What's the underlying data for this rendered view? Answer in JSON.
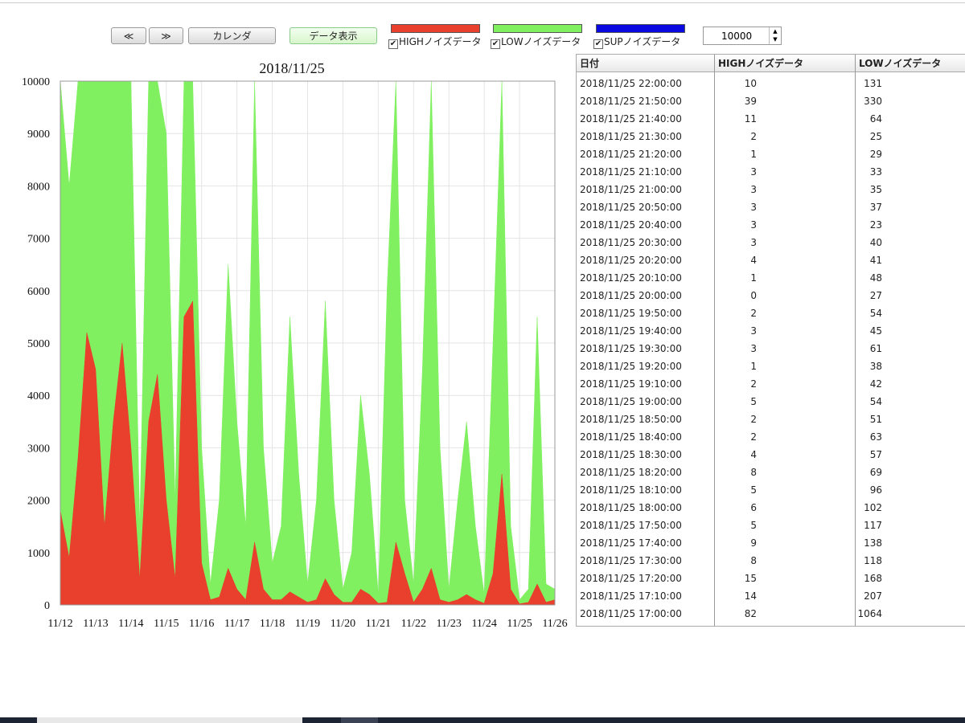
{
  "toolbar": {
    "buttons": [
      "≪",
      "≫",
      "カレンダ",
      "データ表示"
    ],
    "legend": [
      {
        "label": "HIGHノイズデータ",
        "color": "#e8402c"
      },
      {
        "label": "LOWノイズデータ",
        "color": "#80f060"
      },
      {
        "label": "SUPノイズデータ",
        "color": "#0a0ae0"
      }
    ],
    "spinner": 10000
  },
  "chart_data": {
    "type": "area",
    "title": "2018/11/25",
    "x": [
      0,
      0.25,
      0.5,
      0.75,
      1,
      1.25,
      1.5,
      1.75,
      2,
      2.25,
      2.5,
      2.75,
      3,
      3.25,
      3.5,
      3.75,
      4,
      4.25,
      4.5,
      4.75,
      5,
      5.25,
      5.5,
      5.75,
      6,
      6.25,
      6.5,
      6.75,
      7,
      7.25,
      7.5,
      7.75,
      8,
      8.25,
      8.5,
      8.75,
      9,
      9.25,
      9.5,
      9.75,
      10,
      10.25,
      10.5,
      10.75,
      11,
      11.25,
      11.5,
      11.75,
      12,
      12.25,
      12.5,
      12.75,
      13,
      13.25,
      13.5,
      13.75,
      14
    ],
    "series": [
      {
        "color": "#80f060",
        "values": [
          10000,
          8000,
          10000,
          10000,
          10000,
          10000,
          10000,
          10000,
          10000,
          1500,
          10000,
          10000,
          9000,
          2000,
          10000,
          10000,
          3000,
          400,
          2000,
          6500,
          3500,
          1500,
          10000,
          3000,
          800,
          1500,
          5500,
          2500,
          400,
          2000,
          5800,
          2000,
          300,
          1000,
          4000,
          2500,
          200,
          6000,
          10000,
          2000,
          400,
          4500,
          10000,
          3000,
          300,
          2000,
          3500,
          1500,
          200,
          5000,
          10000,
          1500,
          100,
          300,
          5500,
          400,
          300
        ]
      },
      {
        "color": "#e8402c",
        "values": [
          1800,
          900,
          2800,
          5200,
          4500,
          1500,
          3500,
          5000,
          3000,
          500,
          3500,
          4400,
          2000,
          500,
          5500,
          5800,
          800,
          100,
          150,
          700,
          300,
          100,
          1200,
          300,
          100,
          100,
          250,
          150,
          50,
          100,
          500,
          200,
          50,
          50,
          300,
          200,
          30,
          50,
          1200,
          600,
          50,
          300,
          700,
          100,
          50,
          100,
          200,
          100,
          30,
          600,
          2500,
          300,
          20,
          50,
          400,
          50,
          100
        ]
      }
    ],
    "xlim": [
      0,
      14
    ],
    "xticks": [
      {
        "value": 0,
        "label": "11/12"
      },
      {
        "value": 1,
        "label": "11/13"
      },
      {
        "value": 2,
        "label": "11/14"
      },
      {
        "value": 3,
        "label": "11/15"
      },
      {
        "value": 4,
        "label": "11/16"
      },
      {
        "value": 5,
        "label": "11/17"
      },
      {
        "value": 6,
        "label": "11/18"
      },
      {
        "value": 7,
        "label": "11/19"
      },
      {
        "value": 8,
        "label": "11/20"
      },
      {
        "value": 9,
        "label": "11/21"
      },
      {
        "value": 10,
        "label": "11/22"
      },
      {
        "value": 11,
        "label": "11/23"
      },
      {
        "value": 12,
        "label": "11/24"
      },
      {
        "value": 13,
        "label": "11/25"
      },
      {
        "value": 14,
        "label": "11/26"
      }
    ],
    "ylim": [
      0,
      10000
    ],
    "yticks": [
      0,
      1000,
      2000,
      3000,
      4000,
      5000,
      6000,
      7000,
      8000,
      9000,
      10000
    ],
    "grid": true
  },
  "table": {
    "header": [
      "日付",
      "HIGHノイズデータ",
      "LOWノイズデータ"
    ],
    "rows": [
      [
        "2018/11/25 22:00:00",
        10,
        131
      ],
      [
        "2018/11/25 21:50:00",
        39,
        330
      ],
      [
        "2018/11/25 21:40:00",
        11,
        64
      ],
      [
        "2018/11/25 21:30:00",
        2,
        25
      ],
      [
        "2018/11/25 21:20:00",
        1,
        29
      ],
      [
        "2018/11/25 21:10:00",
        3,
        33
      ],
      [
        "2018/11/25 21:00:00",
        3,
        35
      ],
      [
        "2018/11/25 20:50:00",
        3,
        37
      ],
      [
        "2018/11/25 20:40:00",
        3,
        23
      ],
      [
        "2018/11/25 20:30:00",
        3,
        40
      ],
      [
        "2018/11/25 20:20:00",
        4,
        41
      ],
      [
        "2018/11/25 20:10:00",
        1,
        48
      ],
      [
        "2018/11/25 20:00:00",
        0,
        27
      ],
      [
        "2018/11/25 19:50:00",
        2,
        54
      ],
      [
        "2018/11/25 19:40:00",
        3,
        45
      ],
      [
        "2018/11/25 19:30:00",
        3,
        61
      ],
      [
        "2018/11/25 19:20:00",
        1,
        38
      ],
      [
        "2018/11/25 19:10:00",
        2,
        42
      ],
      [
        "2018/11/25 19:00:00",
        5,
        54
      ],
      [
        "2018/11/25 18:50:00",
        2,
        51
      ],
      [
        "2018/11/25 18:40:00",
        2,
        63
      ],
      [
        "2018/11/25 18:30:00",
        4,
        57
      ],
      [
        "2018/11/25 18:20:00",
        8,
        69
      ],
      [
        "2018/11/25 18:10:00",
        5,
        96
      ],
      [
        "2018/11/25 18:00:00",
        6,
        102
      ],
      [
        "2018/11/25 17:50:00",
        5,
        117
      ],
      [
        "2018/11/25 17:40:00",
        9,
        138
      ],
      [
        "2018/11/25 17:30:00",
        8,
        118
      ],
      [
        "2018/11/25 17:20:00",
        15,
        168
      ],
      [
        "2018/11/25 17:10:00",
        14,
        207
      ],
      [
        "2018/11/25 17:00:00",
        82,
        1064
      ]
    ]
  }
}
